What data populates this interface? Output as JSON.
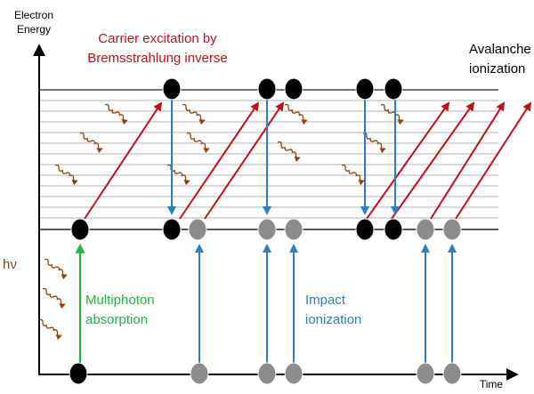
{
  "axes": {
    "y_label_line1": "Electron",
    "y_label_line2": "Energy",
    "x_label": "Time"
  },
  "labels": {
    "carrier_line1": "Carrier excitation by",
    "carrier_line2": "Bremsstrahlung inverse",
    "avalanche_line1": "Avalanche",
    "avalanche_line2": "ionization",
    "hv": "hν",
    "multiphoton_line1": "Multiphoton",
    "multiphoton_line2": "absorption",
    "impact_line1": "Impact",
    "impact_line2": "ionization"
  },
  "colors": {
    "axis": "#000000",
    "band_edge": "#222222",
    "sublevel": "#9a9a9a",
    "excitation": "#c0101a",
    "impact": "#2a7fc4",
    "multiphoton": "#1fb34a",
    "photon": "#8b4513",
    "electron": "#000000",
    "hole": "#8c8c8c"
  }
}
